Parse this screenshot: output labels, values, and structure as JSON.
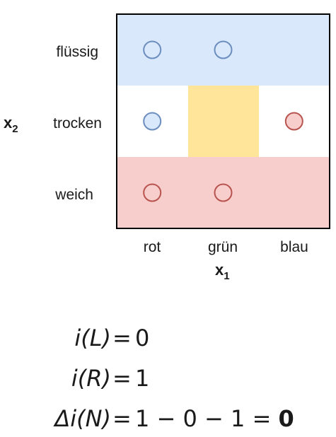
{
  "x_axis": {
    "variable": "x",
    "subscript": "1",
    "categories": [
      "rot",
      "grün",
      "blau"
    ]
  },
  "y_axis": {
    "variable": "x",
    "subscript": "2",
    "categories": [
      "flüssig",
      "trocken",
      "weich"
    ]
  },
  "regions": [
    {
      "name": "top-row-region",
      "color": "#dae8fc"
    },
    {
      "name": "middle-row-region",
      "color": "#ffffff"
    },
    {
      "name": "bottom-row-region",
      "color": "#f8cecc"
    },
    {
      "name": "center-highlight-region",
      "color": "#fff2cc"
    }
  ],
  "points": [
    {
      "x": "rot",
      "y": "flüssig",
      "class": "blue"
    },
    {
      "x": "grün",
      "y": "flüssig",
      "class": "blue"
    },
    {
      "x": "rot",
      "y": "trocken",
      "class": "blue"
    },
    {
      "x": "blau",
      "y": "trocken",
      "class": "red"
    },
    {
      "x": "rot",
      "y": "weich",
      "class": "red"
    },
    {
      "x": "grün",
      "y": "weich",
      "class": "red"
    }
  ],
  "colors": {
    "blue_fill": "#dae8fc",
    "blue_stroke": "#6c8ebf",
    "red_fill": "#f8cecc",
    "red_stroke": "#b85450",
    "yellow_fill": "#ffe599",
    "border": "#000000"
  },
  "formulas": [
    {
      "lhs": "i(L)",
      "eq": "=",
      "rhs": "0",
      "result": ""
    },
    {
      "lhs": "i(R)",
      "eq": "=",
      "rhs": "1",
      "result": ""
    },
    {
      "lhs": "Δi(N)",
      "eq": "=",
      "rhs": "1 − 0 − 1 = ",
      "result": "0"
    }
  ]
}
